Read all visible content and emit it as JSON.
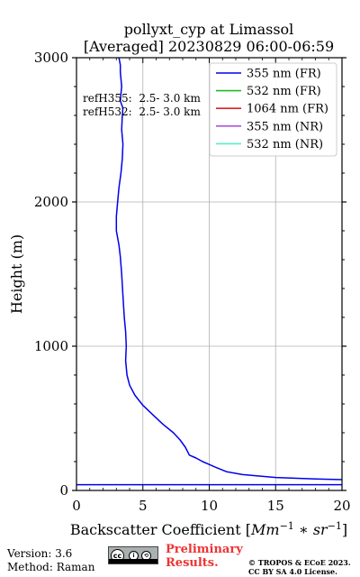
{
  "chart_data": {
    "type": "line",
    "title": "pollyxt_cyp at Limassol",
    "subtitle": "[Averaged] 20230829 06:00-06:59",
    "xlabel": "Backscatter Coefficient [Mm⁻¹ * sr⁻¹]",
    "ylabel": "Height (m)",
    "xlim": [
      0,
      20
    ],
    "ylim": [
      0,
      3000
    ],
    "x_ticks": [
      0,
      5,
      10,
      15,
      20
    ],
    "y_ticks": [
      0,
      1000,
      2000,
      3000
    ],
    "grid": true,
    "legend_position": "top-right",
    "annotations": [
      "refH355:  2.5- 3.0 km",
      "refH532:  2.5- 3.0 km"
    ],
    "series": [
      {
        "name": "355 nm (FR)",
        "color": "#0000ee",
        "x": [
          20,
          18,
          15,
          12.5,
          11.3,
          10.5,
          10,
          9.5,
          9.0,
          8.5,
          8.2,
          7.8,
          7.3,
          6.5,
          5.8,
          5.0,
          4.4,
          4.0,
          3.8,
          3.7,
          3.75,
          3.7,
          3.6,
          3.5,
          3.4,
          3.3,
          3.2,
          3.0,
          3.0,
          3.1,
          3.2,
          3.35,
          3.45,
          3.5,
          3.4,
          3.45,
          3.5,
          3.3,
          3.35,
          3.4,
          3.3,
          3.3,
          3.2
        ],
        "y": [
          75,
          80,
          90,
          110,
          130,
          160,
          180,
          200,
          225,
          245,
          300,
          350,
          400,
          460,
          520,
          590,
          660,
          730,
          800,
          900,
          1000,
          1100,
          1200,
          1350,
          1500,
          1620,
          1700,
          1800,
          1900,
          2000,
          2100,
          2200,
          2300,
          2400,
          2500,
          2600,
          2650,
          2700,
          2750,
          2800,
          2900,
          2950,
          3000
        ]
      },
      {
        "name": "532 nm (FR)",
        "color": "#22bb22",
        "x": [],
        "y": []
      },
      {
        "name": "1064 nm (FR)",
        "color": "#dd2222",
        "x": [],
        "y": []
      },
      {
        "name": "355 nm (NR)",
        "color": "#aa55dd",
        "x": [],
        "y": []
      },
      {
        "name": "532 nm (NR)",
        "color": "#55eecc",
        "x": [],
        "y": []
      }
    ],
    "reference_line": {
      "color": "#0000ee",
      "x": [
        0,
        20
      ],
      "y": [
        40,
        40
      ]
    }
  },
  "footer": {
    "version": "Version: 3.6",
    "method": "Method: Raman",
    "preliminary_line1": "Preliminary",
    "preliminary_line2": "Results.",
    "copyright_line1": "© TROPOS & ECoE 2023.",
    "copyright_line2": "CC BY SA 4.0 License.",
    "license_icon": "cc-by-sa-icon"
  }
}
